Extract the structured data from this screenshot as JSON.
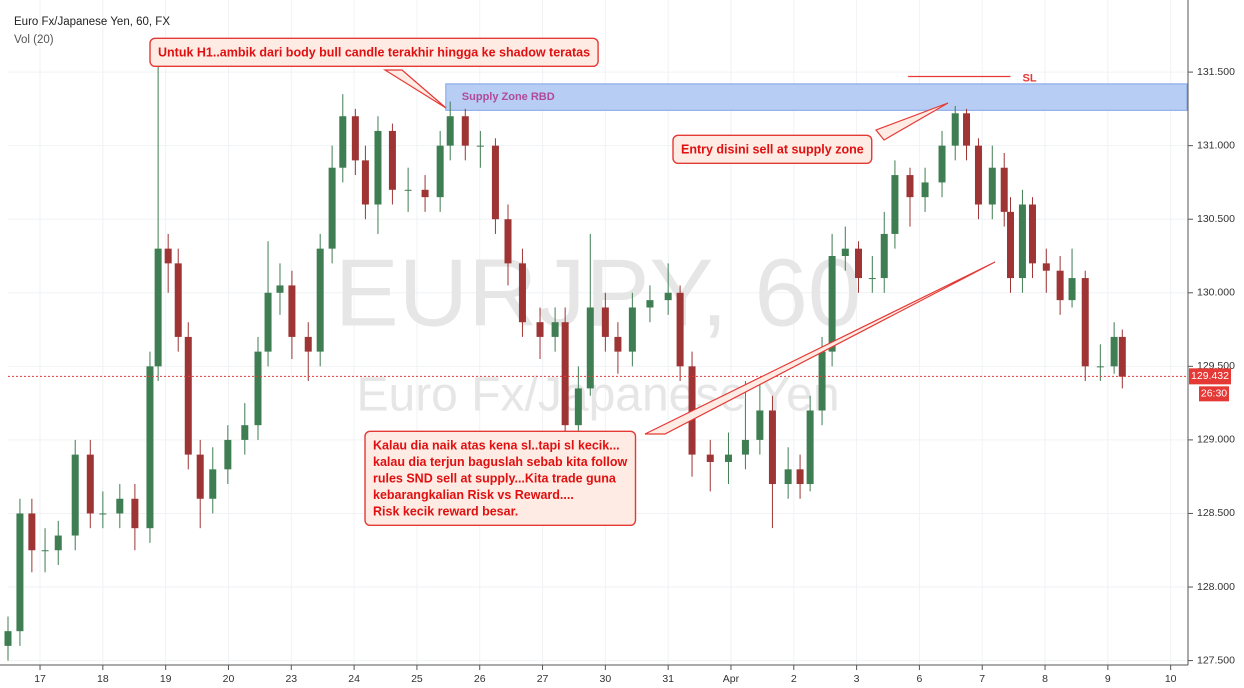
{
  "chart_data": {
    "type": "candlestick",
    "title": "Euro Fx/Japanese Yen, 60, FX",
    "subtitle": "Vol (20)",
    "watermark": [
      "EURJPY, 60",
      "Euro Fx/Japanese Yen"
    ],
    "x": [
      -0.51,
      -0.32,
      -0.13,
      0.08,
      0.29,
      0.56,
      0.8,
      1.0,
      1.27,
      1.51,
      1.75,
      1.88,
      2.04,
      2.2,
      2.36,
      2.55,
      2.75,
      2.99,
      3.26,
      3.47,
      3.63,
      3.82,
      4.01,
      4.27,
      4.46,
      4.65,
      4.82,
      5.02,
      5.18,
      5.38,
      5.61,
      5.86,
      6.13,
      6.37,
      6.53,
      6.77,
      7.01,
      7.25,
      7.45,
      7.68,
      7.96,
      8.2,
      8.36,
      8.57,
      8.76,
      9.0,
      9.2,
      9.43,
      9.71,
      10.0,
      10.19,
      10.38,
      10.67,
      10.96,
      11.23,
      11.46,
      11.66,
      11.91,
      12.1,
      12.26,
      12.45,
      12.61,
      12.82,
      13.03,
      13.25,
      13.44,
      13.61,
      13.85,
      14.09,
      14.36,
      14.57,
      14.75,
      14.94,
      15.16,
      15.35,
      15.45,
      15.64,
      15.8,
      16.02,
      16.24,
      16.43,
      16.64,
      16.88,
      17.1,
      17.23
    ],
    "open": [
      127.6,
      127.7,
      128.5,
      128.25,
      128.25,
      128.35,
      128.9,
      128.5,
      128.5,
      128.6,
      128.4,
      129.5,
      130.3,
      130.2,
      129.7,
      128.9,
      128.6,
      128.8,
      129.0,
      129.1,
      129.6,
      130.0,
      130.05,
      129.7,
      129.6,
      130.3,
      130.85,
      131.2,
      130.9,
      130.6,
      131.1,
      130.7,
      130.7,
      130.65,
      131.0,
      131.2,
      131.0,
      131.0,
      130.5,
      130.2,
      129.8,
      129.7,
      129.8,
      129.1,
      129.35,
      129.9,
      129.7,
      129.6,
      129.9,
      129.95,
      130.0,
      129.5,
      128.9,
      128.85,
      128.9,
      129.0,
      129.2,
      128.7,
      128.8,
      128.7,
      129.2,
      129.6,
      130.25,
      130.3,
      130.1,
      130.1,
      130.4,
      130.8,
      130.65,
      130.75,
      131.0,
      131.22,
      131.0,
      130.6,
      130.85,
      130.55,
      130.1,
      130.6,
      130.2,
      130.15,
      129.95,
      130.1,
      129.5,
      129.5,
      129.7
    ],
    "high": [
      127.8,
      128.6,
      128.6,
      128.4,
      128.45,
      129.0,
      129.0,
      128.65,
      128.7,
      128.7,
      129.6,
      131.6,
      130.4,
      130.3,
      129.8,
      129.0,
      128.95,
      129.1,
      129.25,
      129.7,
      130.35,
      130.2,
      130.15,
      129.8,
      130.4,
      131.0,
      131.35,
      131.25,
      131.0,
      131.2,
      131.15,
      130.85,
      130.8,
      131.1,
      131.3,
      131.25,
      131.1,
      131.05,
      130.6,
      130.3,
      129.9,
      129.9,
      129.9,
      129.5,
      130.4,
      130.0,
      129.8,
      130.0,
      130.05,
      130.2,
      130.05,
      129.6,
      129.0,
      129.05,
      129.4,
      129.4,
      129.3,
      128.95,
      128.9,
      129.3,
      129.7,
      130.4,
      130.45,
      130.35,
      130.25,
      130.55,
      130.9,
      130.85,
      130.85,
      131.1,
      131.27,
      131.25,
      131.05,
      131.0,
      130.95,
      130.65,
      130.7,
      130.65,
      130.3,
      130.25,
      130.3,
      130.15,
      129.65,
      129.8,
      129.75
    ],
    "low": [
      127.5,
      127.6,
      128.1,
      128.1,
      128.15,
      128.25,
      128.4,
      128.4,
      128.4,
      128.25,
      128.3,
      129.4,
      130.0,
      129.6,
      128.8,
      128.4,
      128.5,
      128.7,
      128.9,
      129.0,
      129.5,
      129.85,
      129.55,
      129.4,
      129.5,
      130.2,
      130.75,
      130.8,
      130.5,
      130.4,
      130.6,
      130.55,
      130.55,
      130.55,
      130.9,
      130.9,
      130.85,
      130.4,
      130.05,
      129.7,
      129.55,
      129.6,
      129.0,
      129.0,
      129.3,
      129.6,
      129.45,
      129.5,
      129.8,
      129.85,
      129.4,
      128.75,
      128.65,
      128.7,
      128.8,
      128.9,
      128.4,
      128.6,
      128.6,
      128.65,
      129.1,
      129.5,
      130.15,
      130.0,
      130.0,
      130.0,
      130.3,
      130.45,
      130.55,
      130.65,
      130.9,
      130.9,
      130.5,
      130.5,
      130.45,
      130.0,
      130.0,
      130.1,
      130.0,
      129.85,
      129.9,
      129.4,
      129.4,
      129.45,
      129.35
    ],
    "close": [
      127.7,
      128.5,
      128.25,
      128.25,
      128.35,
      128.9,
      128.5,
      128.5,
      128.6,
      128.4,
      129.5,
      130.3,
      130.2,
      129.7,
      128.9,
      128.6,
      128.8,
      129.0,
      129.1,
      129.6,
      130.0,
      130.05,
      129.7,
      129.6,
      130.3,
      130.85,
      131.2,
      130.9,
      130.6,
      131.1,
      130.7,
      130.7,
      130.65,
      131.0,
      131.2,
      131.0,
      131.0,
      130.5,
      130.2,
      129.8,
      129.7,
      129.8,
      129.1,
      129.35,
      129.9,
      129.7,
      129.6,
      129.9,
      129.95,
      130.0,
      129.5,
      128.9,
      128.85,
      128.9,
      129.0,
      129.2,
      128.7,
      128.8,
      128.7,
      129.2,
      129.6,
      130.25,
      130.3,
      130.1,
      130.1,
      130.4,
      130.8,
      130.65,
      130.75,
      131.0,
      131.22,
      131.0,
      130.6,
      130.85,
      130.55,
      130.1,
      130.6,
      130.2,
      130.15,
      129.95,
      130.1,
      129.5,
      129.5,
      129.7,
      129.43
    ],
    "up_color": "#3f7d52",
    "down_color": "#9e3434",
    "xlim": [
      -0.51,
      18.26
    ],
    "ylim": [
      127.47,
      131.99
    ],
    "xticks": [
      {
        "value": 0,
        "label": "17"
      },
      {
        "value": 1,
        "label": "18"
      },
      {
        "value": 2,
        "label": "19"
      },
      {
        "value": 3,
        "label": "20"
      },
      {
        "value": 4,
        "label": "23"
      },
      {
        "value": 5,
        "label": "24"
      },
      {
        "value": 6,
        "label": "25"
      },
      {
        "value": 7,
        "label": "26"
      },
      {
        "value": 8,
        "label": "27"
      },
      {
        "value": 9,
        "label": "30"
      },
      {
        "value": 10,
        "label": "31"
      },
      {
        "value": 11,
        "label": "Apr"
      },
      {
        "value": 12,
        "label": "2"
      },
      {
        "value": 13,
        "label": "3"
      },
      {
        "value": 14,
        "label": "6"
      },
      {
        "value": 15,
        "label": "7"
      },
      {
        "value": 16,
        "label": "8"
      },
      {
        "value": 17,
        "label": "9"
      },
      {
        "value": 18,
        "label": "10"
      }
    ],
    "yticks": [
      {
        "value": 131.5,
        "label": "131.500"
      },
      {
        "value": 131,
        "label": "131.000"
      },
      {
        "value": 130.5,
        "label": "130.500"
      },
      {
        "value": 130,
        "label": "130.000"
      },
      {
        "value": 129.5,
        "label": "129.500"
      },
      {
        "value": 129,
        "label": "129.000"
      },
      {
        "value": 128.5,
        "label": "128.500"
      },
      {
        "value": 128,
        "label": "128.000"
      },
      {
        "value": 127.5,
        "label": "127.500"
      }
    ],
    "grid": true,
    "last_price": {
      "value": 129.432,
      "label": "129.432"
    },
    "countdown": "26:30",
    "zone": {
      "label": "Supply Zone RBD",
      "start": 6.46,
      "top": 131.42,
      "bottom": 131.24
    },
    "sl": {
      "label": "SL",
      "value": 131.47,
      "start": 13.82,
      "end": 15.45
    },
    "annotations": [
      {
        "lines": [
          "Untuk H1..ambik dari body bull candle terakhir hingga ke shadow teratas"
        ]
      },
      {
        "lines": [
          "Entry disini sell at supply zone"
        ]
      },
      {
        "lines": [
          "Kalau dia naik atas kena sl..tapi sl kecik...",
          "kalau dia terjun baguslah sebab kita follow",
          "rules SND sell at supply...Kita trade guna",
          "kebarangkalian Risk vs Reward....",
          "Risk kecik reward besar."
        ]
      }
    ]
  }
}
